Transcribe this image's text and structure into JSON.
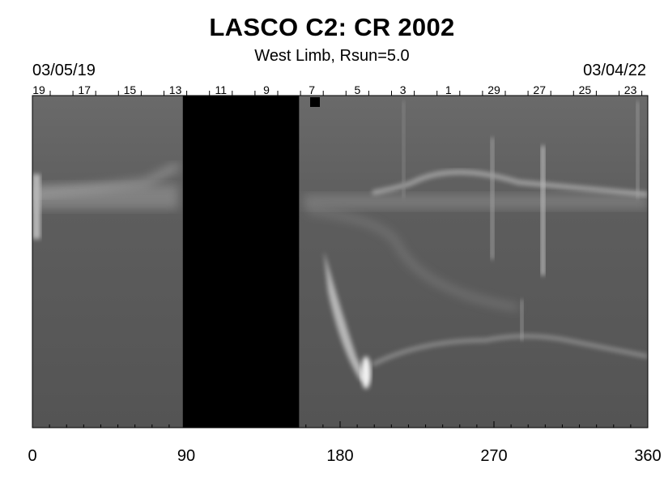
{
  "header": {
    "title": "LASCO C2: CR 2002",
    "subtitle": "West Limb, Rsun=5.0",
    "date_start": "03/05/19",
    "date_end": "03/04/22"
  },
  "top_axis": {
    "labels": [
      "19",
      "17",
      "15",
      "13",
      "11",
      "9",
      "7",
      "5",
      "3",
      "1",
      "29",
      "27",
      "25",
      "23"
    ]
  },
  "bottom_axis": {
    "labels": [
      "0",
      "90",
      "180",
      "270",
      "360"
    ],
    "values": [
      0,
      90,
      180,
      270,
      360
    ]
  },
  "data_gap": {
    "start": 88,
    "end": 156
  },
  "colors": {
    "background": "#5f5f5f",
    "gap": "#000000"
  }
}
